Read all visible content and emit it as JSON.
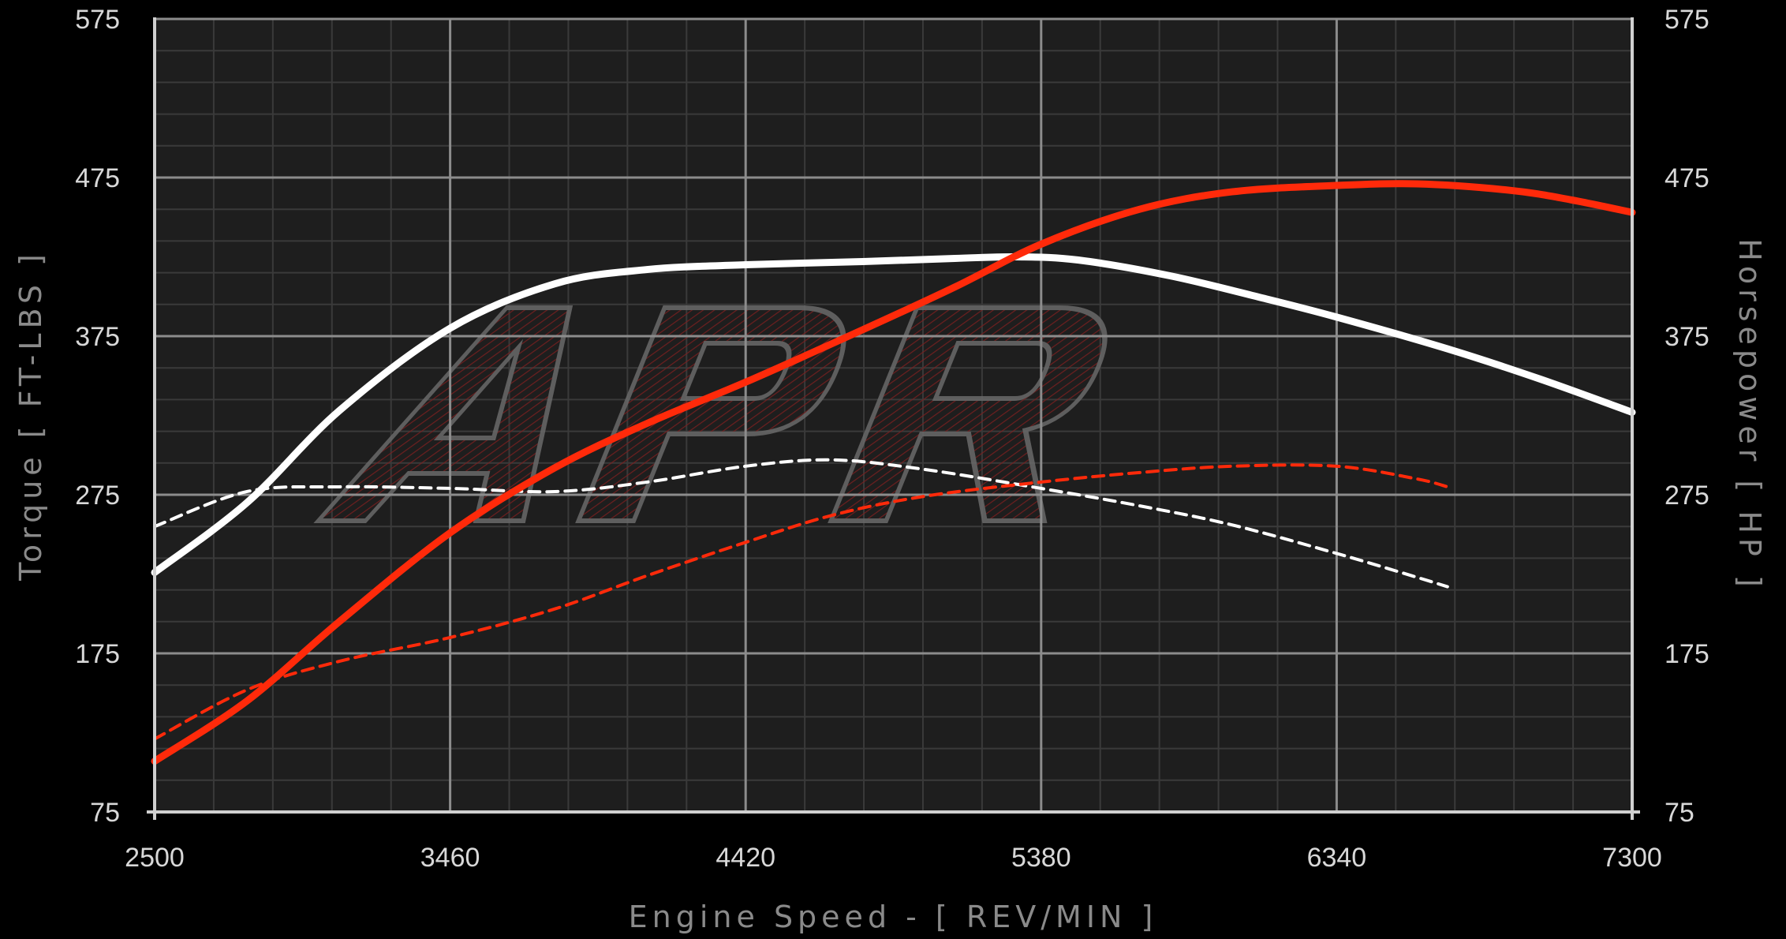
{
  "chart_data": {
    "type": "line",
    "title": "",
    "xlabel": "Engine Speed - [ REV/MIN ]",
    "ylabel_left": "Torque [ FT-LBS ]",
    "ylabel_right": "Horsepower [ HP ]",
    "xlim": [
      2500,
      7300
    ],
    "ylim": [
      75,
      575
    ],
    "x_ticks": [
      "2500",
      "3460",
      "4420",
      "5380",
      "6340",
      "7300"
    ],
    "y_ticks": [
      "75",
      "175",
      "275",
      "375",
      "475",
      "575"
    ],
    "grid": true,
    "watermark": "APR",
    "series": [
      {
        "id": "tuned-torque",
        "color": "#ffffff",
        "style": "solid",
        "axis": "left",
        "points": [
          [
            2500,
            226
          ],
          [
            2800,
            270
          ],
          [
            3100,
            328
          ],
          [
            3460,
            380
          ],
          [
            3800,
            408
          ],
          [
            4100,
            417
          ],
          [
            4420,
            420
          ],
          [
            4800,
            422
          ],
          [
            5100,
            424
          ],
          [
            5300,
            425
          ],
          [
            5500,
            423
          ],
          [
            5800,
            413
          ],
          [
            6100,
            399
          ],
          [
            6340,
            387
          ],
          [
            6700,
            367
          ],
          [
            7000,
            348
          ],
          [
            7300,
            327
          ]
        ]
      },
      {
        "id": "tuned-horsepower",
        "color": "#ff2a0a",
        "style": "solid",
        "axis": "right",
        "points": [
          [
            2500,
            107
          ],
          [
            2800,
            145
          ],
          [
            3100,
            195
          ],
          [
            3460,
            251
          ],
          [
            3800,
            292
          ],
          [
            4100,
            320
          ],
          [
            4420,
            346
          ],
          [
            4800,
            379
          ],
          [
            5100,
            406
          ],
          [
            5380,
            433
          ],
          [
            5700,
            455
          ],
          [
            6000,
            466
          ],
          [
            6340,
            470
          ],
          [
            6600,
            471
          ],
          [
            6900,
            467
          ],
          [
            7100,
            461
          ],
          [
            7300,
            453
          ]
        ]
      },
      {
        "id": "stock-torque",
        "color": "#ffffff",
        "style": "dashed",
        "axis": "left",
        "points": [
          [
            2500,
            255
          ],
          [
            2800,
            277
          ],
          [
            3100,
            280
          ],
          [
            3460,
            279
          ],
          [
            3800,
            277
          ],
          [
            4100,
            283
          ],
          [
            4420,
            293
          ],
          [
            4700,
            297
          ],
          [
            5000,
            291
          ],
          [
            5380,
            279
          ],
          [
            5700,
            268
          ],
          [
            6000,
            256
          ],
          [
            6340,
            238
          ],
          [
            6600,
            223
          ],
          [
            6700,
            217
          ]
        ]
      },
      {
        "id": "stock-horsepower",
        "color": "#ff2a0a",
        "style": "dashed",
        "axis": "right",
        "points": [
          [
            2500,
            121
          ],
          [
            2800,
            152
          ],
          [
            3100,
            170
          ],
          [
            3460,
            185
          ],
          [
            3800,
            203
          ],
          [
            4100,
            224
          ],
          [
            4420,
            245
          ],
          [
            4700,
            262
          ],
          [
            5000,
            274
          ],
          [
            5380,
            283
          ],
          [
            5700,
            289
          ],
          [
            6000,
            293
          ],
          [
            6340,
            293
          ],
          [
            6600,
            285
          ],
          [
            6700,
            280
          ]
        ]
      }
    ]
  }
}
